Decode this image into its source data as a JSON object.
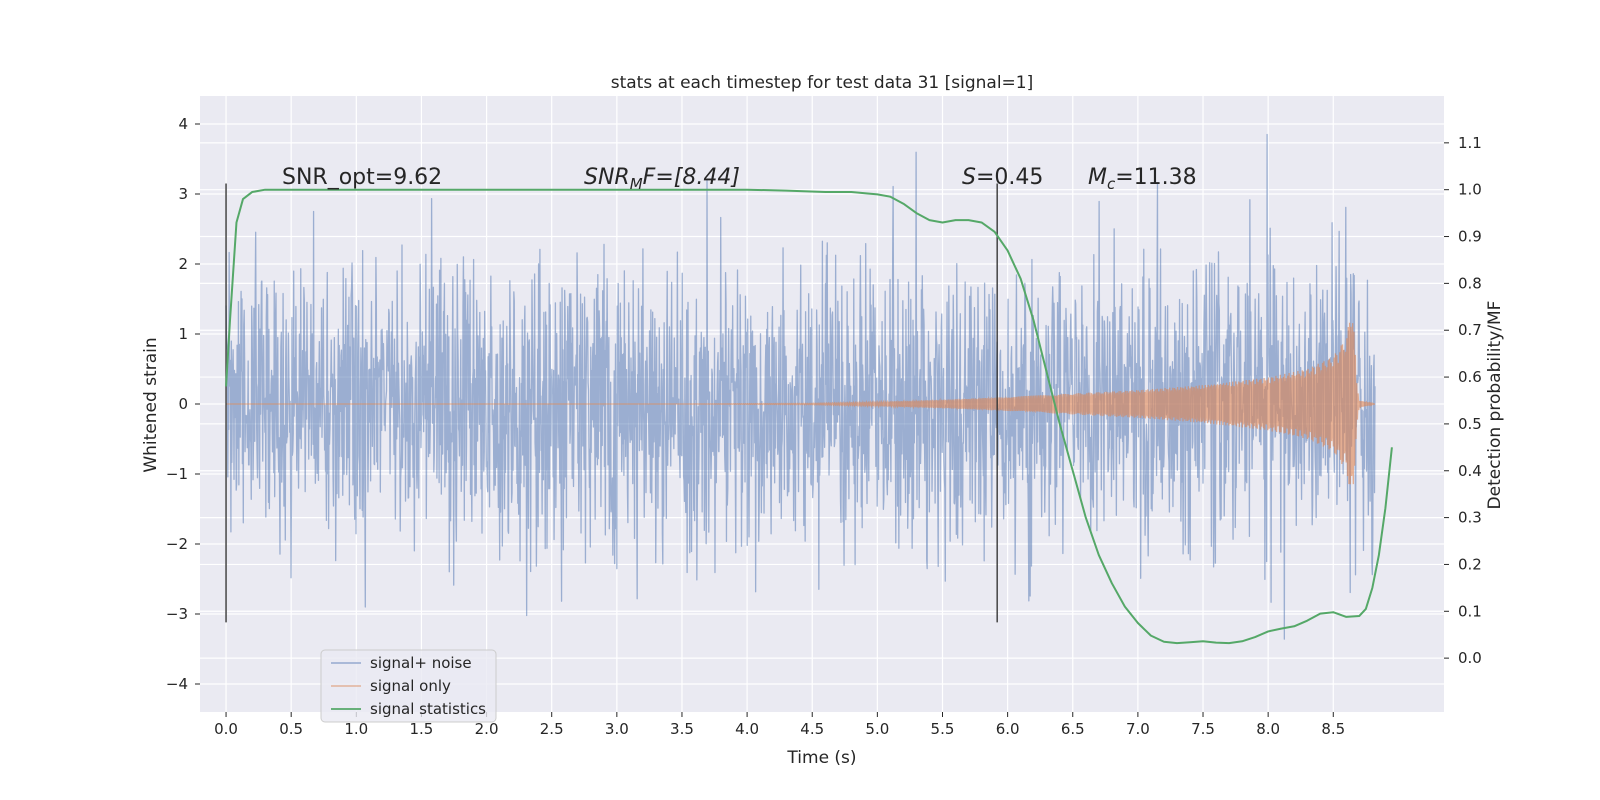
{
  "chart_data": {
    "type": "line",
    "title": "stats at each timestep for test data 31 [signal=1]",
    "xlabel": "Time (s)",
    "ylabel": "Whitened strain",
    "y2label": "Detection probability/MF",
    "xlim": [
      -0.2,
      9.35
    ],
    "ylim": [
      -4.4,
      4.4
    ],
    "y2lim": [
      -0.115,
      1.2
    ],
    "xticks": [
      0.0,
      0.5,
      1.0,
      1.5,
      2.0,
      2.5,
      3.0,
      3.5,
      4.0,
      4.5,
      5.0,
      5.5,
      6.0,
      6.5,
      7.0,
      7.5,
      8.0,
      8.5
    ],
    "xtick_labels": [
      "0.0",
      "0.5",
      "1.0",
      "1.5",
      "2.0",
      "2.5",
      "3.0",
      "3.5",
      "4.0",
      "4.5",
      "5.0",
      "5.5",
      "6.0",
      "6.5",
      "7.0",
      "7.5",
      "8.0",
      "8.5"
    ],
    "yticks": [
      4,
      3,
      2,
      1,
      0,
      -1,
      -2,
      -3,
      -4
    ],
    "ytick_labels": [
      "4",
      "3",
      "2",
      "1",
      "0",
      "−1",
      "−2",
      "−3",
      "−4"
    ],
    "y2ticks": [
      1.1,
      1.0,
      0.9,
      0.8,
      0.7,
      0.6,
      0.5,
      0.4,
      0.3,
      0.2,
      0.1,
      0.0
    ],
    "y2tick_labels": [
      "1.1",
      "1.0",
      "0.9",
      "0.8",
      "0.7",
      "0.6",
      "0.5",
      "0.4",
      "0.3",
      "0.2",
      "0.1",
      "0.0"
    ],
    "grid": true,
    "vlines": [
      {
        "x": 0.0,
        "ymin": -3.12,
        "ymax": 3.15
      },
      {
        "x": 5.92,
        "ymin": -3.12,
        "ymax": 3.15
      }
    ],
    "annotations": {
      "snr_opt": "SNR_opt=9.62",
      "snr_mf_var": "SNR",
      "snr_mf_sub": "M",
      "snr_mf_rest": "F=[8.44]",
      "s_var": "S",
      "s_rest": "=0.45",
      "mc_var": "M",
      "mc_sub": "c",
      "mc_rest": "=11.38"
    },
    "legend": {
      "placement": "lower-left",
      "entries": [
        "signal+ noise",
        "signal only",
        "signal statistics"
      ]
    },
    "series": [
      {
        "name": "signal+ noise",
        "color": "#4c72b0",
        "style": "dense noise, sigma ~1, roughly 9000 samples from 0.0 to 8.82 s",
        "t_start": 0.0,
        "t_end": 8.82,
        "rms": 1.0
      },
      {
        "name": "signal only",
        "color": "#dd8452",
        "style": "chirp envelope",
        "envelope_t": [
          0.0,
          3.5,
          4.5,
          5.0,
          5.5,
          6.0,
          6.5,
          7.0,
          7.5,
          8.0,
          8.3,
          8.5,
          8.6,
          8.65,
          8.68,
          8.7,
          8.82
        ],
        "envelope_amp": [
          0.0,
          0.0,
          0.01,
          0.03,
          0.06,
          0.1,
          0.15,
          0.2,
          0.27,
          0.38,
          0.5,
          0.68,
          0.95,
          1.45,
          0.3,
          0.05,
          0.0
        ]
      },
      {
        "name": "signal statistics",
        "color": "#55a868",
        "axis": "right",
        "x": [
          0.0,
          0.03,
          0.08,
          0.13,
          0.2,
          0.3,
          0.5,
          1.0,
          2.0,
          3.0,
          4.0,
          4.3,
          4.6,
          4.8,
          5.0,
          5.1,
          5.2,
          5.3,
          5.4,
          5.5,
          5.6,
          5.7,
          5.8,
          5.9,
          6.0,
          6.1,
          6.2,
          6.3,
          6.4,
          6.5,
          6.6,
          6.7,
          6.8,
          6.9,
          7.0,
          7.1,
          7.2,
          7.3,
          7.4,
          7.5,
          7.6,
          7.7,
          7.8,
          7.9,
          8.0,
          8.1,
          8.2,
          8.3,
          8.4,
          8.5,
          8.6,
          8.7,
          8.75,
          8.8,
          8.85,
          8.9,
          8.95
        ],
        "values": [
          0.58,
          0.72,
          0.93,
          0.98,
          0.995,
          1.0,
          1.0,
          1.0,
          1.0,
          1.0,
          1.0,
          0.998,
          0.995,
          0.995,
          0.99,
          0.985,
          0.97,
          0.95,
          0.935,
          0.93,
          0.935,
          0.935,
          0.93,
          0.91,
          0.87,
          0.81,
          0.72,
          0.61,
          0.5,
          0.4,
          0.3,
          0.22,
          0.16,
          0.11,
          0.075,
          0.048,
          0.035,
          0.032,
          0.034,
          0.036,
          0.033,
          0.032,
          0.036,
          0.045,
          0.057,
          0.063,
          0.068,
          0.08,
          0.095,
          0.098,
          0.088,
          0.09,
          0.105,
          0.15,
          0.22,
          0.32,
          0.45
        ]
      }
    ]
  }
}
